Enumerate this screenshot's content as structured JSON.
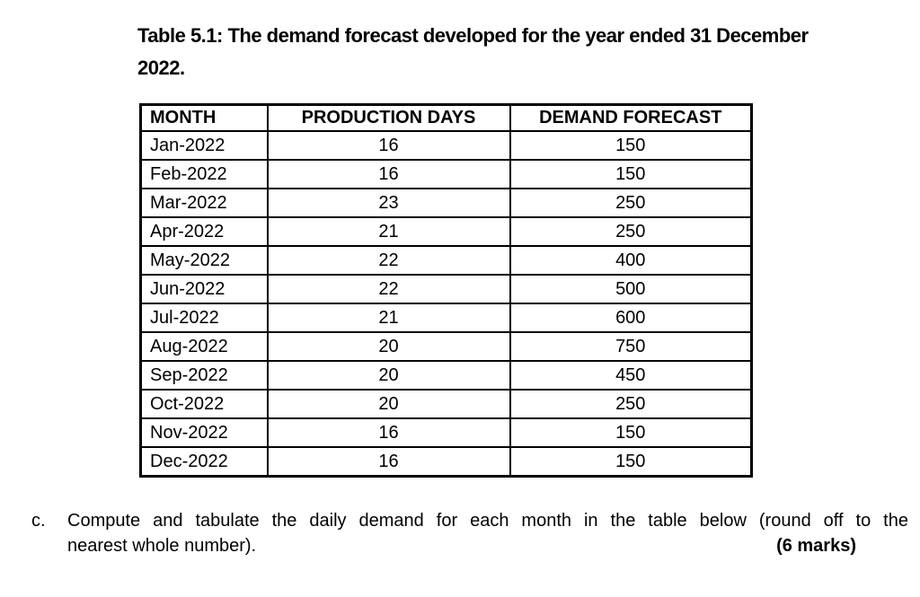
{
  "title": {
    "line1": "Table 5.1: The demand forecast developed for the year ended 31 December",
    "line2": "2022."
  },
  "table": {
    "headers": [
      "MONTH",
      "PRODUCTION DAYS",
      "DEMAND FORECAST"
    ],
    "rows": [
      {
        "month": "Jan-2022",
        "production_days": "16",
        "demand_forecast": "150"
      },
      {
        "month": "Feb-2022",
        "production_days": "16",
        "demand_forecast": "150"
      },
      {
        "month": "Mar-2022",
        "production_days": "23",
        "demand_forecast": "250"
      },
      {
        "month": "Apr-2022",
        "production_days": "21",
        "demand_forecast": "250"
      },
      {
        "month": "May-2022",
        "production_days": "22",
        "demand_forecast": "400"
      },
      {
        "month": "Jun-2022",
        "production_days": "22",
        "demand_forecast": "500"
      },
      {
        "month": "Jul-2022",
        "production_days": "21",
        "demand_forecast": "600"
      },
      {
        "month": "Aug-2022",
        "production_days": "20",
        "demand_forecast": "750"
      },
      {
        "month": "Sep-2022",
        "production_days": "20",
        "demand_forecast": "450"
      },
      {
        "month": "Oct-2022",
        "production_days": "20",
        "demand_forecast": "250"
      },
      {
        "month": "Nov-2022",
        "production_days": "16",
        "demand_forecast": "150"
      },
      {
        "month": "Dec-2022",
        "production_days": "16",
        "demand_forecast": "150"
      }
    ]
  },
  "question": {
    "letter": "c.",
    "line1": "Compute and tabulate the daily demand for each month in the table below (round off to the",
    "line2": "nearest whole number).",
    "marks": "(6 marks)"
  },
  "colors": {
    "text": "#000000",
    "background": "#ffffff",
    "table_border": "#000000"
  }
}
